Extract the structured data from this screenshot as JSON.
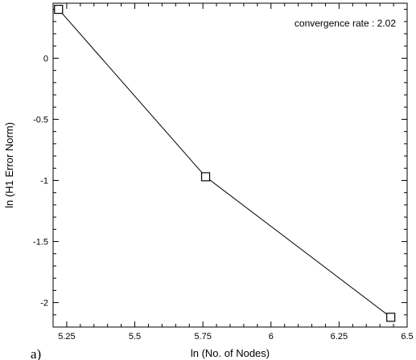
{
  "chart_data": {
    "type": "line",
    "title": "",
    "xlabel": "ln (No. of Nodes)",
    "ylabel": "ln (H1 Error Norm)",
    "annotation": "convergence rate : 2.02",
    "panel_label": "a)",
    "xlim": [
      5.2,
      6.5
    ],
    "ylim": [
      -2.2,
      0.45
    ],
    "x_ticks": [
      5.25,
      5.5,
      5.75,
      6,
      6.25,
      6.5
    ],
    "x_tick_labels": [
      "5.25",
      "5.5",
      "5.75",
      "6",
      "6.25",
      "6.5"
    ],
    "y_ticks": [
      0,
      -0.5,
      -1,
      -1.5,
      -2
    ],
    "y_tick_labels": [
      "0",
      "-0.5",
      "-1",
      "-1.5",
      "-2"
    ],
    "grid": false,
    "series": [
      {
        "x": [
          5.22,
          5.76,
          6.44
        ],
        "y": [
          0.4,
          -0.97,
          -2.12
        ],
        "marker": "open-square",
        "color": "#000000"
      }
    ]
  }
}
